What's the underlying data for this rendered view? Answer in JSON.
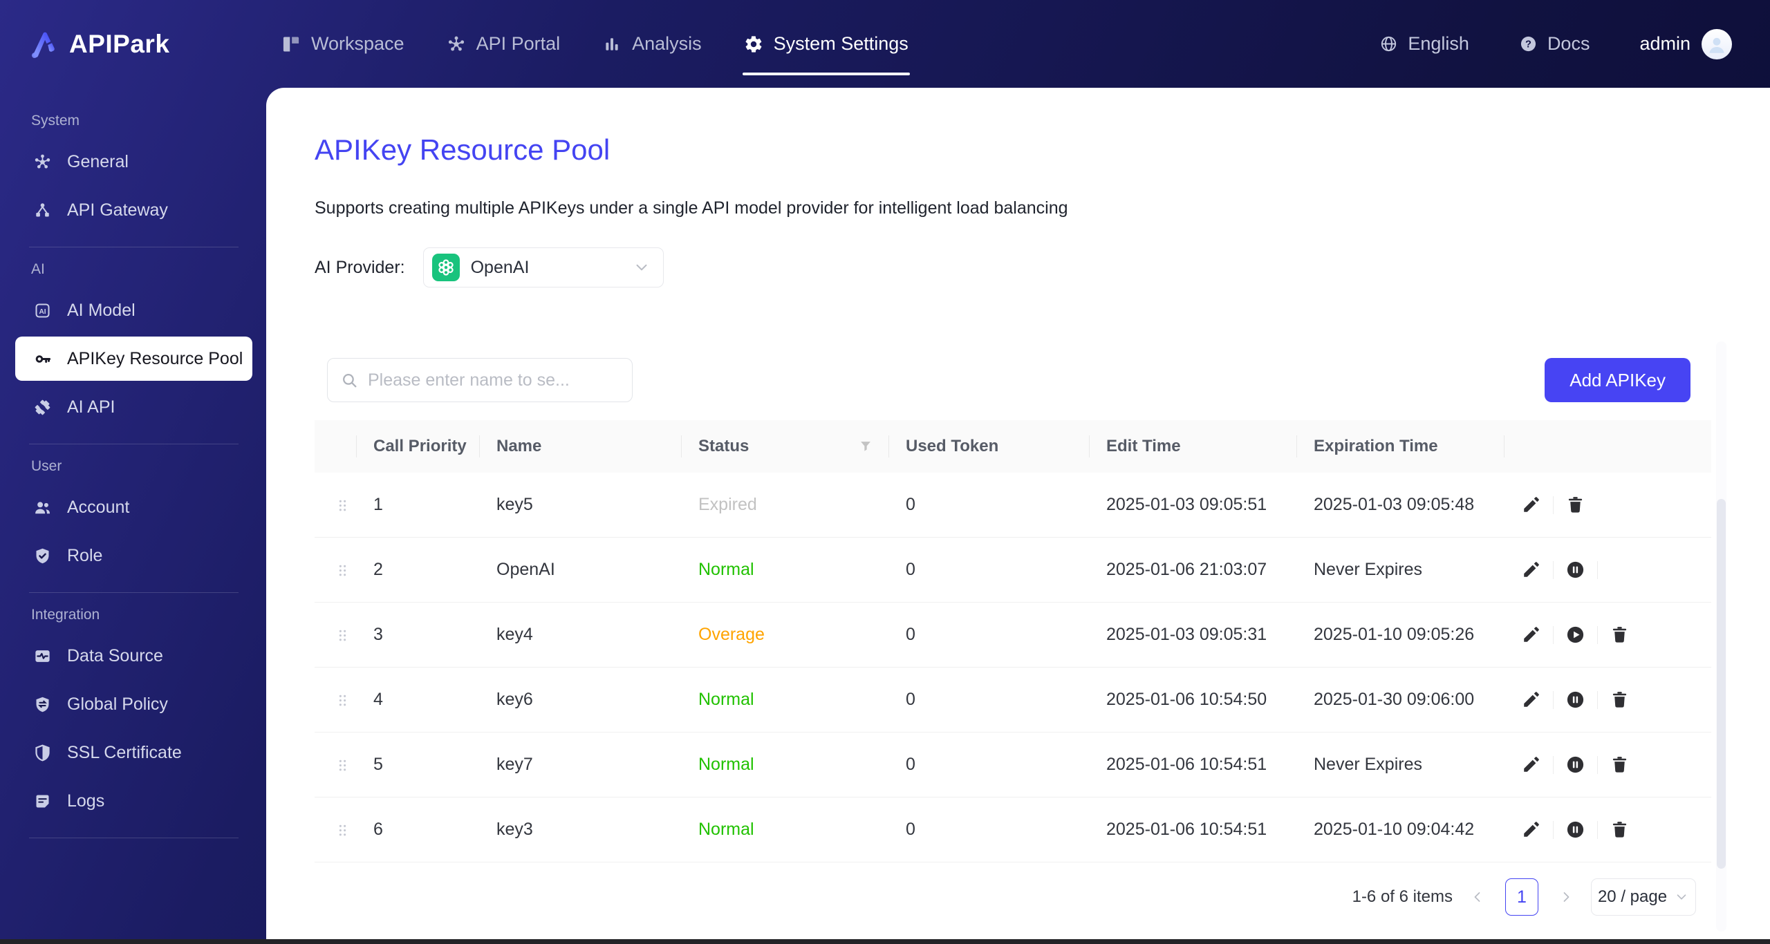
{
  "brand": {
    "name": "APIPark"
  },
  "navbar": {
    "tabs": [
      {
        "label": "Workspace",
        "icon": "workspace-icon",
        "active": false
      },
      {
        "label": "API Portal",
        "icon": "api-portal-icon",
        "active": false
      },
      {
        "label": "Analysis",
        "icon": "analysis-icon",
        "active": false
      },
      {
        "label": "System Settings",
        "icon": "settings-gear-icon",
        "active": true
      }
    ],
    "language": {
      "label": "English",
      "icon": "globe-icon"
    },
    "docs": {
      "label": "Docs",
      "icon": "help-icon"
    },
    "user": {
      "name": "admin"
    }
  },
  "sidebar": {
    "sections": [
      {
        "label": "System",
        "items": [
          {
            "label": "General",
            "icon": "hub-icon"
          },
          {
            "label": "API Gateway",
            "icon": "gateway-icon"
          }
        ]
      },
      {
        "label": "AI",
        "items": [
          {
            "label": "AI Model",
            "icon": "ai-model-icon"
          },
          {
            "label": "APIKey Resource Pool",
            "icon": "key-icon",
            "active": true
          },
          {
            "label": "AI API",
            "icon": "ai-api-icon"
          }
        ]
      },
      {
        "label": "User",
        "items": [
          {
            "label": "Account",
            "icon": "users-icon"
          },
          {
            "label": "Role",
            "icon": "shield-check-icon"
          }
        ]
      },
      {
        "label": "Integration",
        "items": [
          {
            "label": "Data Source",
            "icon": "data-source-icon"
          },
          {
            "label": "Global Policy",
            "icon": "global-policy-icon"
          },
          {
            "label": "SSL Certificate",
            "icon": "ssl-icon"
          },
          {
            "label": "Logs",
            "icon": "logs-icon"
          }
        ]
      }
    ]
  },
  "page": {
    "title": "APIKey Resource Pool",
    "subtitle": "Supports creating multiple APIKeys under a single API model provider for intelligent load balancing",
    "provider_label": "AI Provider:",
    "provider": {
      "value": "OpenAI",
      "icon": "openai-icon"
    }
  },
  "toolbar": {
    "search_placeholder": "Please enter name to se...",
    "add_button_label": "Add APIKey"
  },
  "table": {
    "columns": [
      "Call Priority",
      "Name",
      "Status",
      "Used Token",
      "Edit Time",
      "Expiration Time"
    ],
    "rows": [
      {
        "priority": "1",
        "name": "key5",
        "status": "Expired",
        "status_type": "expired",
        "used_token": "0",
        "edit_time": "2025-01-03 09:05:51",
        "expiration_time": "2025-01-03 09:05:48",
        "actions": [
          "edit",
          "delete"
        ]
      },
      {
        "priority": "2",
        "name": "OpenAI",
        "status": "Normal",
        "status_type": "normal",
        "used_token": "0",
        "edit_time": "2025-01-06 21:03:07",
        "expiration_time": "Never Expires",
        "actions": [
          "edit",
          "pause"
        ],
        "trailing_divider": true
      },
      {
        "priority": "3",
        "name": "key4",
        "status": "Overage",
        "status_type": "overage",
        "used_token": "0",
        "edit_time": "2025-01-03 09:05:31",
        "expiration_time": "2025-01-10 09:05:26",
        "actions": [
          "edit",
          "play",
          "delete"
        ]
      },
      {
        "priority": "4",
        "name": "key6",
        "status": "Normal",
        "status_type": "normal",
        "used_token": "0",
        "edit_time": "2025-01-06 10:54:50",
        "expiration_time": "2025-01-30 09:06:00",
        "actions": [
          "edit",
          "pause",
          "delete"
        ]
      },
      {
        "priority": "5",
        "name": "key7",
        "status": "Normal",
        "status_type": "normal",
        "used_token": "0",
        "edit_time": "2025-01-06 10:54:51",
        "expiration_time": "Never Expires",
        "actions": [
          "edit",
          "pause",
          "delete"
        ]
      },
      {
        "priority": "6",
        "name": "key3",
        "status": "Normal",
        "status_type": "normal",
        "used_token": "0",
        "edit_time": "2025-01-06 10:54:51",
        "expiration_time": "2025-01-10 09:04:42",
        "actions": [
          "edit",
          "pause",
          "delete"
        ]
      }
    ]
  },
  "pagination": {
    "total_text": "1-6 of 6 items",
    "current_page": "1",
    "page_size": "20 / page"
  },
  "colors": {
    "accent": "#4444f2",
    "status_normal": "#21c100",
    "status_overage": "#ffa400",
    "status_expired": "#c2c2c2",
    "openai_green": "#19c37d",
    "navbar_navy": "#141548"
  }
}
